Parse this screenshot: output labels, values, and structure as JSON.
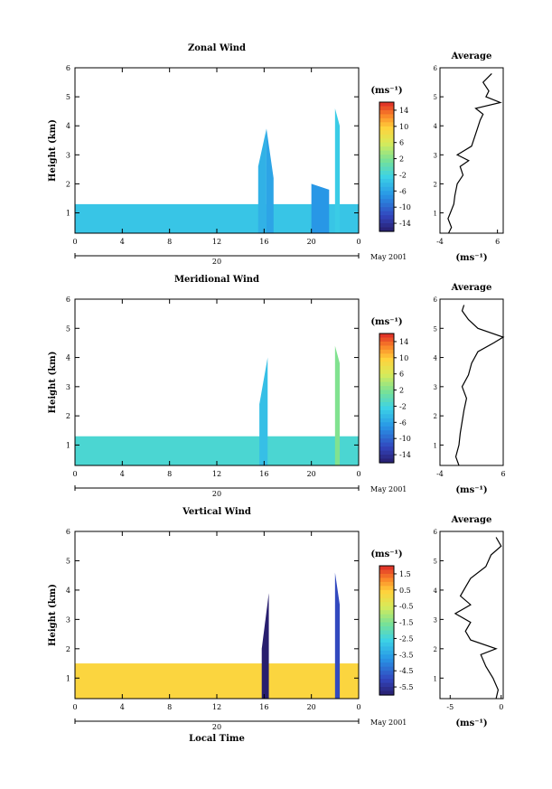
{
  "chart_data": [
    {
      "type": "heatmap",
      "title": "Zonal Wind",
      "ylabel": "Height (km)",
      "unit_label": "(ms⁻¹)",
      "x_ticks": [
        "0",
        "4",
        "8",
        "12",
        "16",
        "20",
        "0"
      ],
      "y_ticks": [
        "1",
        "2",
        "3",
        "4",
        "5",
        "6"
      ],
      "xlim": [
        0,
        24
      ],
      "ylim": [
        0.3,
        6
      ],
      "date_day": "20",
      "date_label": "May 2001",
      "colorbar_ticks": [
        "14",
        "10",
        "6",
        "2",
        "-2",
        "-6",
        "-10",
        "-14"
      ],
      "colorbar_range": [
        -16,
        16
      ],
      "series": [
        {
          "name": "background",
          "x": [
            0,
            24
          ],
          "ymin": 0.3,
          "ymax": [
            1.3,
            1.3
          ],
          "value": -3.5
        },
        {
          "name": "spike",
          "x": [
            15.5,
            16.2
          ],
          "ymax": [
            2.6,
            3.9
          ],
          "value": -5
        },
        {
          "name": "spike",
          "x": [
            16.2,
            16.8
          ],
          "ymax": [
            3.9,
            2.2
          ],
          "value": -6
        },
        {
          "name": "spike",
          "x": [
            22.0,
            22.4
          ],
          "ymax": [
            4.6,
            4.0
          ],
          "value": -3
        },
        {
          "name": "spike",
          "x": [
            20.0,
            21.5
          ],
          "ymax": [
            2.0,
            1.8
          ],
          "value": -7
        }
      ],
      "avg_title": "Average",
      "avg_xlabel": "(ms⁻¹)",
      "avg_x_ticks": [
        "-4",
        "6"
      ],
      "avg_xlim": [
        -4,
        7
      ],
      "avg_profile": {
        "h": [
          0.3,
          0.5,
          0.8,
          1.0,
          1.3,
          1.6,
          2.0,
          2.3,
          2.6,
          2.8,
          3.0,
          3.3,
          3.6,
          3.9,
          4.2,
          4.4,
          4.6,
          4.8,
          5.0,
          5.2,
          5.5,
          5.8
        ],
        "v": [
          -2.5,
          -2.0,
          -2.6,
          -2.2,
          -1.6,
          -1.4,
          -1.0,
          0.0,
          -0.5,
          1.0,
          -1.0,
          1.5,
          2.0,
          2.5,
          3.0,
          3.5,
          2.2,
          6.5,
          4.0,
          4.5,
          3.5,
          5.0
        ]
      }
    },
    {
      "type": "heatmap",
      "title": "Meridional Wind",
      "ylabel": "Height (km)",
      "unit_label": "(ms⁻¹)",
      "x_ticks": [
        "0",
        "4",
        "8",
        "12",
        "16",
        "20",
        "0"
      ],
      "y_ticks": [
        "1",
        "2",
        "3",
        "4",
        "5",
        "6"
      ],
      "xlim": [
        0,
        24
      ],
      "ylim": [
        0.3,
        6
      ],
      "date_day": "20",
      "date_label": "May 2001",
      "colorbar_ticks": [
        "14",
        "10",
        "6",
        "2",
        "-2",
        "-6",
        "-10",
        "-14"
      ],
      "colorbar_range": [
        -16,
        16
      ],
      "series": [
        {
          "name": "background",
          "x": [
            0,
            24
          ],
          "ymin": 0.3,
          "ymax": [
            1.3,
            1.3
          ],
          "value": -1.5
        },
        {
          "name": "spike",
          "x": [
            15.6,
            16.3
          ],
          "ymax": [
            2.4,
            4.0
          ],
          "value": -4
        },
        {
          "name": "spike",
          "x": [
            22.0,
            22.4
          ],
          "ymax": [
            4.4,
            3.8
          ],
          "value": 2
        }
      ],
      "avg_title": "Average",
      "avg_xlabel": "(ms⁻¹)",
      "avg_x_ticks": [
        "-4",
        "6"
      ],
      "avg_xlim": [
        -4,
        6
      ],
      "avg_profile": {
        "h": [
          0.3,
          0.6,
          1.0,
          1.4,
          1.8,
          2.2,
          2.6,
          3.0,
          3.4,
          3.8,
          4.2,
          4.5,
          4.7,
          5.0,
          5.3,
          5.6,
          5.8
        ],
        "v": [
          -1.0,
          -1.5,
          -1.0,
          -0.8,
          -0.5,
          -0.2,
          0.2,
          -0.5,
          0.5,
          1.0,
          2.0,
          4.5,
          6.0,
          2.0,
          0.5,
          -0.5,
          -0.2
        ]
      }
    },
    {
      "type": "heatmap",
      "title": "Vertical Wind",
      "ylabel": "Height (km)",
      "xlabel": "Local Time",
      "unit_label": "(ms⁻¹)",
      "x_ticks": [
        "0",
        "4",
        "8",
        "12",
        "16",
        "20",
        "0"
      ],
      "y_ticks": [
        "1",
        "2",
        "3",
        "4",
        "5",
        "6"
      ],
      "xlim": [
        0,
        24
      ],
      "ylim": [
        0.3,
        6
      ],
      "date_day": "20",
      "date_label": "May 2001",
      "colorbar_ticks": [
        "1.5",
        "0.5",
        "-0.5",
        "-1.5",
        "-2.5",
        "-3.5",
        "-4.5",
        "-5.5"
      ],
      "colorbar_range": [
        -6,
        2
      ],
      "series": [
        {
          "name": "background",
          "x": [
            0,
            24
          ],
          "ymin": 0.3,
          "ymax": [
            1.5,
            1.5
          ],
          "value": 0.3
        },
        {
          "name": "spike",
          "x": [
            15.8,
            16.4
          ],
          "ymax": [
            2.0,
            3.9
          ],
          "value": -6
        },
        {
          "name": "spike",
          "x": [
            22.0,
            22.4
          ],
          "ymax": [
            4.6,
            3.5
          ],
          "value": -5
        }
      ],
      "avg_title": "Average",
      "avg_xlabel": "(ms⁻¹)",
      "avg_x_ticks": [
        "-5",
        "0"
      ],
      "avg_xlim": [
        -6,
        0.2
      ],
      "avg_profile": {
        "h": [
          0.3,
          0.6,
          1.0,
          1.4,
          1.8,
          2.0,
          2.3,
          2.6,
          2.9,
          3.2,
          3.5,
          3.8,
          4.1,
          4.4,
          4.8,
          5.2,
          5.5,
          5.8
        ],
        "v": [
          -0.5,
          -0.3,
          -0.8,
          -1.5,
          -2.0,
          -0.5,
          -3.0,
          -3.5,
          -3.0,
          -4.5,
          -3.0,
          -4.0,
          -3.5,
          -3.0,
          -1.5,
          -1.0,
          0.0,
          -0.5
        ]
      }
    }
  ]
}
